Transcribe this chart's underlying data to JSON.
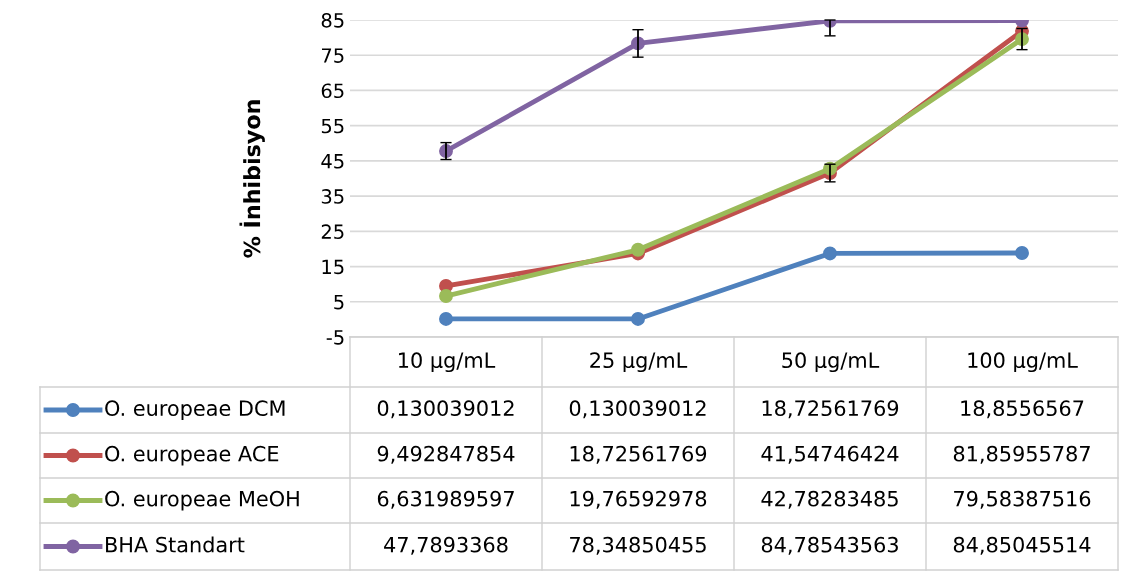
{
  "chart_data": {
    "type": "line",
    "ylabel": "% İnhibisyon",
    "categories": [
      "10 μg/mL",
      "25 μg/mL",
      "50 μg/mL",
      "100 μg/mL"
    ],
    "ylim": [
      -5,
      85
    ],
    "yticks": [
      -5,
      5,
      15,
      25,
      35,
      45,
      55,
      65,
      75,
      85
    ],
    "grid": "y",
    "marker": "circle",
    "line_style": "solid",
    "legend": "bottom",
    "series": [
      {
        "name": "O. europeae DCM",
        "color": "#4f81bd",
        "values": [
          0.130039012,
          0.130039012,
          18.72561769,
          18.8556567
        ],
        "value_labels": [
          "0,130039012",
          "0,130039012",
          "18,72561769",
          "18,8556567"
        ]
      },
      {
        "name": "O. europeae ACE",
        "color": "#c0504d",
        "values": [
          9.492847854,
          18.72561769,
          41.54746424,
          81.85955787
        ],
        "value_labels": [
          "9,492847854",
          "18,72561769",
          "41,54746424",
          "81,85955787"
        ],
        "errors": [
          null,
          null,
          2.5,
          null
        ]
      },
      {
        "name": "O. europeae MeOH",
        "color": "#9bbb59",
        "values": [
          6.631989597,
          19.76592978,
          42.78283485,
          79.58387516
        ],
        "value_labels": [
          "6,631989597",
          "19,76592978",
          "42,78283485",
          "79,58387516"
        ],
        "errors": [
          null,
          null,
          null,
          3
        ]
      },
      {
        "name": "BHA Standart",
        "color": "#8064a2",
        "values": [
          47.7893368,
          78.34850455,
          84.78543563,
          84.85045514
        ],
        "value_labels": [
          "47,7893368",
          "78,34850455",
          "84,78543563",
          "84,85045514"
        ],
        "errors": [
          2.4,
          3.9,
          [
            80.5,
            85
          ],
          null
        ]
      }
    ]
  }
}
